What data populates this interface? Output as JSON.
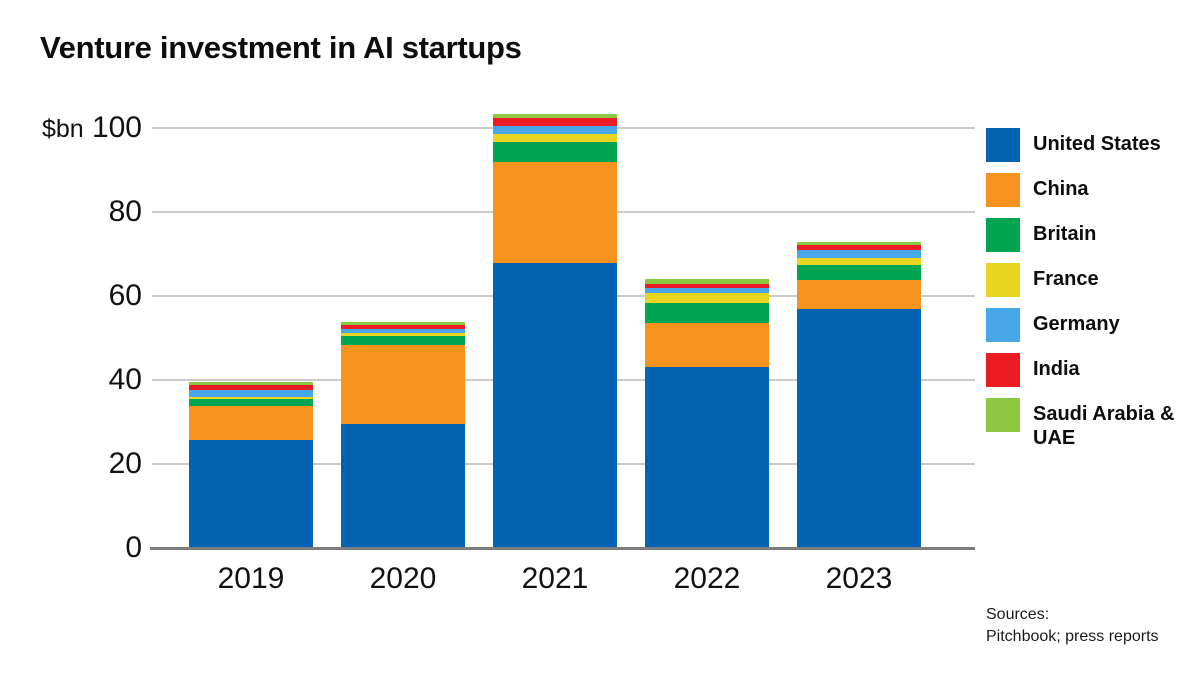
{
  "title": "Venture investment in AI startups",
  "unit_label": "$bn",
  "sources": [
    "Sources:",
    "Pitchbook; press reports"
  ],
  "colors": {
    "grid": "#cbcbcb",
    "baseline": "#7d7d7d",
    "text": "#111111"
  },
  "chart_data": {
    "type": "bar",
    "stacked": true,
    "title": "Venture investment in AI startups",
    "unit": "$bn",
    "categories": [
      "2019",
      "2020",
      "2021",
      "2022",
      "2023"
    ],
    "series": [
      {
        "name": "United States",
        "color": "#0564b1",
        "values": [
          25.7,
          29.5,
          67.8,
          43.0,
          57.0
        ]
      },
      {
        "name": "China",
        "color": "#f6931e",
        "values": [
          8.0,
          18.8,
          24.2,
          10.5,
          6.8
        ]
      },
      {
        "name": "Britain",
        "color": "#00a551",
        "values": [
          1.7,
          2.2,
          4.6,
          4.8,
          3.6
        ]
      },
      {
        "name": "France",
        "color": "#e9d41f",
        "values": [
          0.6,
          0.6,
          1.9,
          2.5,
          1.7
        ]
      },
      {
        "name": "Germany",
        "color": "#47a7e8",
        "values": [
          1.7,
          1.0,
          2.0,
          1.0,
          1.9
        ]
      },
      {
        "name": "India",
        "color": "#ec1c24",
        "values": [
          1.1,
          1.0,
          1.8,
          1.1,
          1.1
        ]
      },
      {
        "name": "Saudi Arabia & UAE",
        "color": "#8dc63f",
        "values": [
          0.8,
          0.8,
          1.0,
          1.1,
          0.8
        ]
      }
    ],
    "totals": [
      39.6,
      53.9,
      103.3,
      64.0,
      72.9
    ],
    "ylim": [
      0,
      100
    ],
    "yticks": [
      0,
      20,
      40,
      60,
      80,
      100
    ],
    "grid": true,
    "legend_position": "right",
    "stack_order": "first series at bottom"
  }
}
